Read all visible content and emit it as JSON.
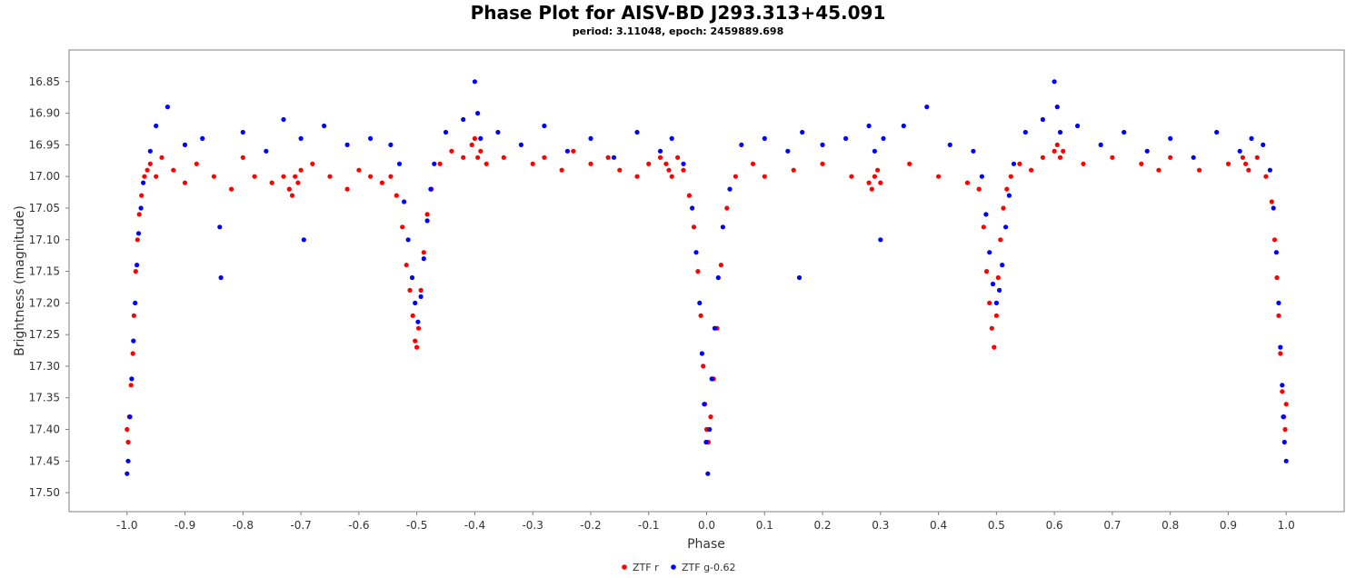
{
  "chart_data": {
    "type": "scatter",
    "title": "Phase Plot for AISV-BD J293.313+45.091",
    "subtitle": "period: 3.11048, epoch: 2459889.698",
    "xlabel": "Phase",
    "ylabel": "Brightness (magnitude)",
    "xlim": [
      -1.1,
      1.1
    ],
    "ylim": [
      17.53,
      16.8
    ],
    "y_inverted": true,
    "x_ticks": [
      -1.0,
      -0.9,
      -0.8,
      -0.7,
      -0.6,
      -0.5,
      -0.4,
      -0.3,
      -0.2,
      -0.1,
      0.0,
      0.1,
      0.2,
      0.3,
      0.4,
      0.5,
      0.6,
      0.7,
      0.8,
      0.9,
      1.0
    ],
    "x_tick_labels": [
      "-1.0",
      "-0.9",
      "-0.8",
      "-0.7",
      "-0.6",
      "-0.5",
      "-0.4",
      "-0.3",
      "-0.2",
      "-0.1",
      "0.0",
      "0.1",
      "0.2",
      "0.3",
      "0.4",
      "0.5",
      "0.6",
      "0.7",
      "0.8",
      "0.9",
      "1.0"
    ],
    "y_ticks": [
      16.85,
      16.9,
      16.95,
      17.0,
      17.05,
      17.1,
      17.15,
      17.2,
      17.25,
      17.3,
      17.35,
      17.4,
      17.45,
      17.5
    ],
    "y_tick_labels": [
      "16.85",
      "16.90",
      "16.95",
      "17.00",
      "17.05",
      "17.10",
      "17.15",
      "17.20",
      "17.25",
      "17.30",
      "17.35",
      "17.40",
      "17.45",
      "17.50"
    ],
    "grid": false,
    "legend_position": "bottom-center",
    "series": [
      {
        "name": "ZTF r",
        "color": "#ff0000",
        "x": [
          -1.0,
          -0.998,
          -0.996,
          -0.993,
          -0.99,
          -0.988,
          -0.985,
          -0.982,
          -0.979,
          -0.975,
          -0.97,
          -0.965,
          -0.96,
          -0.95,
          -0.94,
          -0.92,
          -0.9,
          -0.88,
          -0.85,
          -0.82,
          -0.8,
          -0.78,
          -0.75,
          -0.73,
          -0.72,
          -0.715,
          -0.71,
          -0.705,
          -0.7,
          -0.68,
          -0.65,
          -0.62,
          -0.6,
          -0.58,
          -0.56,
          -0.545,
          -0.535,
          -0.525,
          -0.518,
          -0.512,
          -0.507,
          -0.503,
          -0.5,
          -0.497,
          -0.493,
          -0.488,
          -0.482,
          -0.475,
          -0.46,
          -0.44,
          -0.42,
          -0.405,
          -0.4,
          -0.395,
          -0.39,
          -0.38,
          -0.35,
          -0.3,
          -0.28,
          -0.25,
          -0.23,
          -0.2,
          -0.17,
          -0.15,
          -0.12,
          -0.1,
          -0.08,
          -0.07,
          -0.065,
          -0.06,
          -0.05,
          -0.04,
          -0.03,
          -0.022,
          -0.015,
          -0.01,
          -0.006,
          -0.003,
          0.0,
          0.003,
          0.007,
          0.012,
          0.018,
          0.025,
          0.035,
          0.05,
          0.08,
          0.1,
          0.15,
          0.2,
          0.25,
          0.28,
          0.285,
          0.29,
          0.295,
          0.3,
          0.35,
          0.4,
          0.45,
          0.47,
          0.478,
          0.483,
          0.488,
          0.492,
          0.496,
          0.5,
          0.503,
          0.507,
          0.512,
          0.518,
          0.525,
          0.54,
          0.56,
          0.58,
          0.6,
          0.605,
          0.61,
          0.615,
          0.65,
          0.7,
          0.75,
          0.78,
          0.8,
          0.85,
          0.9,
          0.925,
          0.93,
          0.935,
          0.95,
          0.965,
          0.975,
          0.98,
          0.984,
          0.987,
          0.99,
          0.993,
          0.996,
          0.998,
          1.0
        ],
        "y": [
          17.4,
          17.42,
          17.38,
          17.33,
          17.28,
          17.22,
          17.15,
          17.1,
          17.06,
          17.03,
          17.0,
          16.99,
          16.98,
          17.0,
          16.97,
          16.99,
          17.01,
          16.98,
          17.0,
          17.02,
          16.97,
          17.0,
          17.01,
          17.0,
          17.02,
          17.03,
          17.0,
          17.01,
          16.99,
          16.98,
          17.0,
          17.02,
          16.99,
          17.0,
          17.01,
          17.0,
          17.03,
          17.08,
          17.14,
          17.18,
          17.22,
          17.26,
          17.27,
          17.24,
          17.18,
          17.12,
          17.06,
          17.02,
          16.98,
          16.96,
          16.97,
          16.95,
          16.94,
          16.97,
          16.96,
          16.98,
          16.97,
          16.98,
          16.97,
          16.99,
          16.96,
          16.98,
          16.97,
          16.99,
          17.0,
          16.98,
          16.97,
          16.98,
          16.99,
          17.0,
          16.97,
          16.99,
          17.03,
          17.08,
          17.15,
          17.22,
          17.3,
          17.36,
          17.4,
          17.42,
          17.38,
          17.32,
          17.24,
          17.14,
          17.05,
          17.0,
          16.98,
          17.0,
          16.99,
          16.98,
          17.0,
          17.01,
          17.02,
          17.0,
          16.99,
          17.01,
          16.98,
          17.0,
          17.01,
          17.02,
          17.08,
          17.15,
          17.2,
          17.24,
          17.27,
          17.22,
          17.16,
          17.1,
          17.05,
          17.02,
          17.0,
          16.98,
          16.99,
          16.97,
          16.96,
          16.95,
          16.97,
          16.96,
          16.98,
          16.97,
          16.98,
          16.99,
          16.97,
          16.99,
          16.98,
          16.97,
          16.98,
          16.99,
          16.97,
          17.0,
          17.04,
          17.1,
          17.16,
          17.22,
          17.28,
          17.34,
          17.38,
          17.4,
          17.36
        ]
      },
      {
        "name": "ZTF g-0.62",
        "color": "#0000ff",
        "x": [
          -1.0,
          -0.998,
          -0.995,
          -0.992,
          -0.989,
          -0.986,
          -0.983,
          -0.98,
          -0.976,
          -0.972,
          -0.96,
          -0.95,
          -0.93,
          -0.9,
          -0.87,
          -0.84,
          -0.838,
          -0.8,
          -0.76,
          -0.73,
          -0.7,
          -0.695,
          -0.66,
          -0.62,
          -0.58,
          -0.545,
          -0.53,
          -0.522,
          -0.515,
          -0.508,
          -0.503,
          -0.498,
          -0.493,
          -0.488,
          -0.482,
          -0.476,
          -0.47,
          -0.45,
          -0.42,
          -0.4,
          -0.395,
          -0.39,
          -0.36,
          -0.32,
          -0.28,
          -0.24,
          -0.2,
          -0.16,
          -0.12,
          -0.08,
          -0.06,
          -0.04,
          -0.025,
          -0.018,
          -0.012,
          -0.008,
          -0.004,
          -0.001,
          0.002,
          0.005,
          0.009,
          0.014,
          0.02,
          0.028,
          0.04,
          0.06,
          0.1,
          0.14,
          0.16,
          0.165,
          0.2,
          0.24,
          0.28,
          0.29,
          0.3,
          0.305,
          0.34,
          0.38,
          0.42,
          0.46,
          0.475,
          0.482,
          0.488,
          0.494,
          0.5,
          0.505,
          0.51,
          0.516,
          0.522,
          0.53,
          0.55,
          0.58,
          0.6,
          0.605,
          0.61,
          0.64,
          0.68,
          0.72,
          0.76,
          0.8,
          0.84,
          0.88,
          0.92,
          0.94,
          0.96,
          0.972,
          0.978,
          0.983,
          0.987,
          0.99,
          0.993,
          0.995,
          0.997,
          1.0
        ],
        "y": [
          17.47,
          17.45,
          17.38,
          17.32,
          17.26,
          17.2,
          17.14,
          17.09,
          17.05,
          17.01,
          16.96,
          16.92,
          16.89,
          16.95,
          16.94,
          17.08,
          17.16,
          16.93,
          16.96,
          16.91,
          16.94,
          17.1,
          16.92,
          16.95,
          16.94,
          16.95,
          16.98,
          17.04,
          17.1,
          17.16,
          17.2,
          17.23,
          17.19,
          17.13,
          17.07,
          17.02,
          16.98,
          16.93,
          16.91,
          16.85,
          16.9,
          16.94,
          16.93,
          16.95,
          16.92,
          16.96,
          16.94,
          16.97,
          16.93,
          16.96,
          16.94,
          16.98,
          17.05,
          17.12,
          17.2,
          17.28,
          17.36,
          17.42,
          17.47,
          17.4,
          17.32,
          17.24,
          17.16,
          17.08,
          17.02,
          16.95,
          16.94,
          16.96,
          17.16,
          16.93,
          16.95,
          16.94,
          16.92,
          16.96,
          17.1,
          16.94,
          16.92,
          16.89,
          16.95,
          16.96,
          17.0,
          17.06,
          17.12,
          17.17,
          17.2,
          17.18,
          17.14,
          17.08,
          17.03,
          16.98,
          16.93,
          16.91,
          16.85,
          16.89,
          16.93,
          16.92,
          16.95,
          16.93,
          16.96,
          16.94,
          16.97,
          16.93,
          16.96,
          16.94,
          16.95,
          16.99,
          17.05,
          17.12,
          17.2,
          17.27,
          17.33,
          17.38,
          17.42,
          17.45
        ]
      }
    ]
  }
}
